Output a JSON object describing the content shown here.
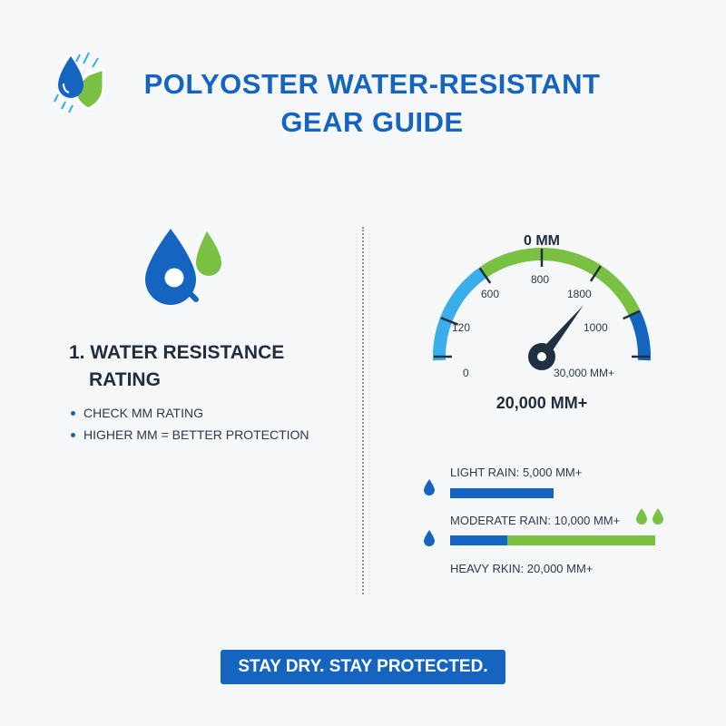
{
  "header": {
    "title": "POLYOSTER WATER-RESISTANT GEAR GUIDE",
    "logo_icon": "water-drop-shield-icon"
  },
  "section": {
    "number": "1.",
    "title_line1": "1. WATER RESISTANCE",
    "title_line2": "RATING",
    "icon": "water-drop-magnifier-icon",
    "bullets": [
      "CHECK MM RATING",
      "HIGHER MM = BETTER PROTECTION"
    ]
  },
  "gauge": {
    "top_label": "0 MM",
    "ticks": [
      "0",
      "120",
      "600",
      "800",
      "1800",
      "1000",
      "30,000 MM+"
    ],
    "readout": "20,000 MM+",
    "colors": {
      "light_blue": "#3aaee8",
      "green": "#7ac143",
      "dark_blue": "#1565c0",
      "needle": "#1f3040"
    }
  },
  "rain_levels": [
    {
      "label": "LIGHT RAIN: 5,000 MM+",
      "blue_fraction": 1.0
    },
    {
      "label": "MODERATE RAIN: 10,000 MM+",
      "blue_fraction": 0.28
    },
    {
      "label": "HEAVY RKIN: 20,000 MM+"
    }
  ],
  "footer": {
    "text": "STAY DRY. STAY PROTECTED."
  }
}
